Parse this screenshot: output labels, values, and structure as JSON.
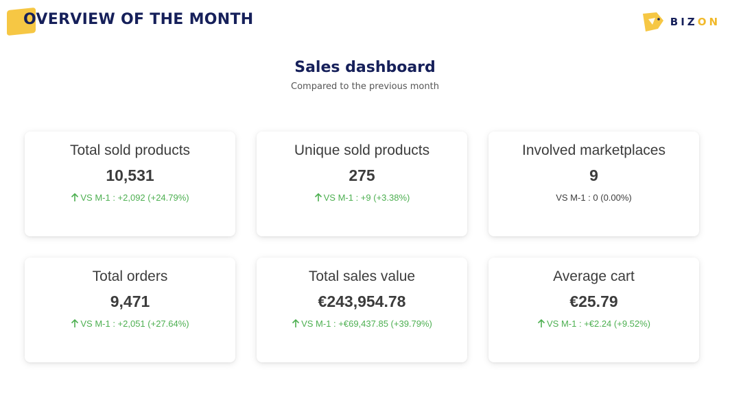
{
  "header": {
    "title": "OVERVIEW OF THE MONTH",
    "brand_name_main": "BIZ",
    "brand_name_accent": "ON",
    "brand_color": "#16205a",
    "accent_color": "#f6c744"
  },
  "dashboard": {
    "title": "Sales dashboard",
    "subtitle": "Compared to the previous month"
  },
  "cards": [
    {
      "label": "Total sold products",
      "value": "10,531",
      "delta": "VS M-1 : +2,092 (+24.79%)",
      "trend": "up"
    },
    {
      "label": "Unique sold products",
      "value": "275",
      "delta": "VS M-1 : +9 (+3.38%)",
      "trend": "up"
    },
    {
      "label": "Involved marketplaces",
      "value": "9",
      "delta": "VS M-1 : 0 (0.00%)",
      "trend": "flat"
    },
    {
      "label": "Total orders",
      "value": "9,471",
      "delta": "VS M-1 : +2,051 (+27.64%)",
      "trend": "up"
    },
    {
      "label": "Total sales value",
      "value": "€243,954.78",
      "delta": "VS M-1 : +€69,437.85 (+39.79%)",
      "trend": "up"
    },
    {
      "label": "Average cart",
      "value": "€25.79",
      "delta": "VS M-1 : +€2.24 (+9.52%)",
      "trend": "up"
    }
  ],
  "colors": {
    "positive": "#4caf50",
    "neutral": "#3c3c3c"
  }
}
